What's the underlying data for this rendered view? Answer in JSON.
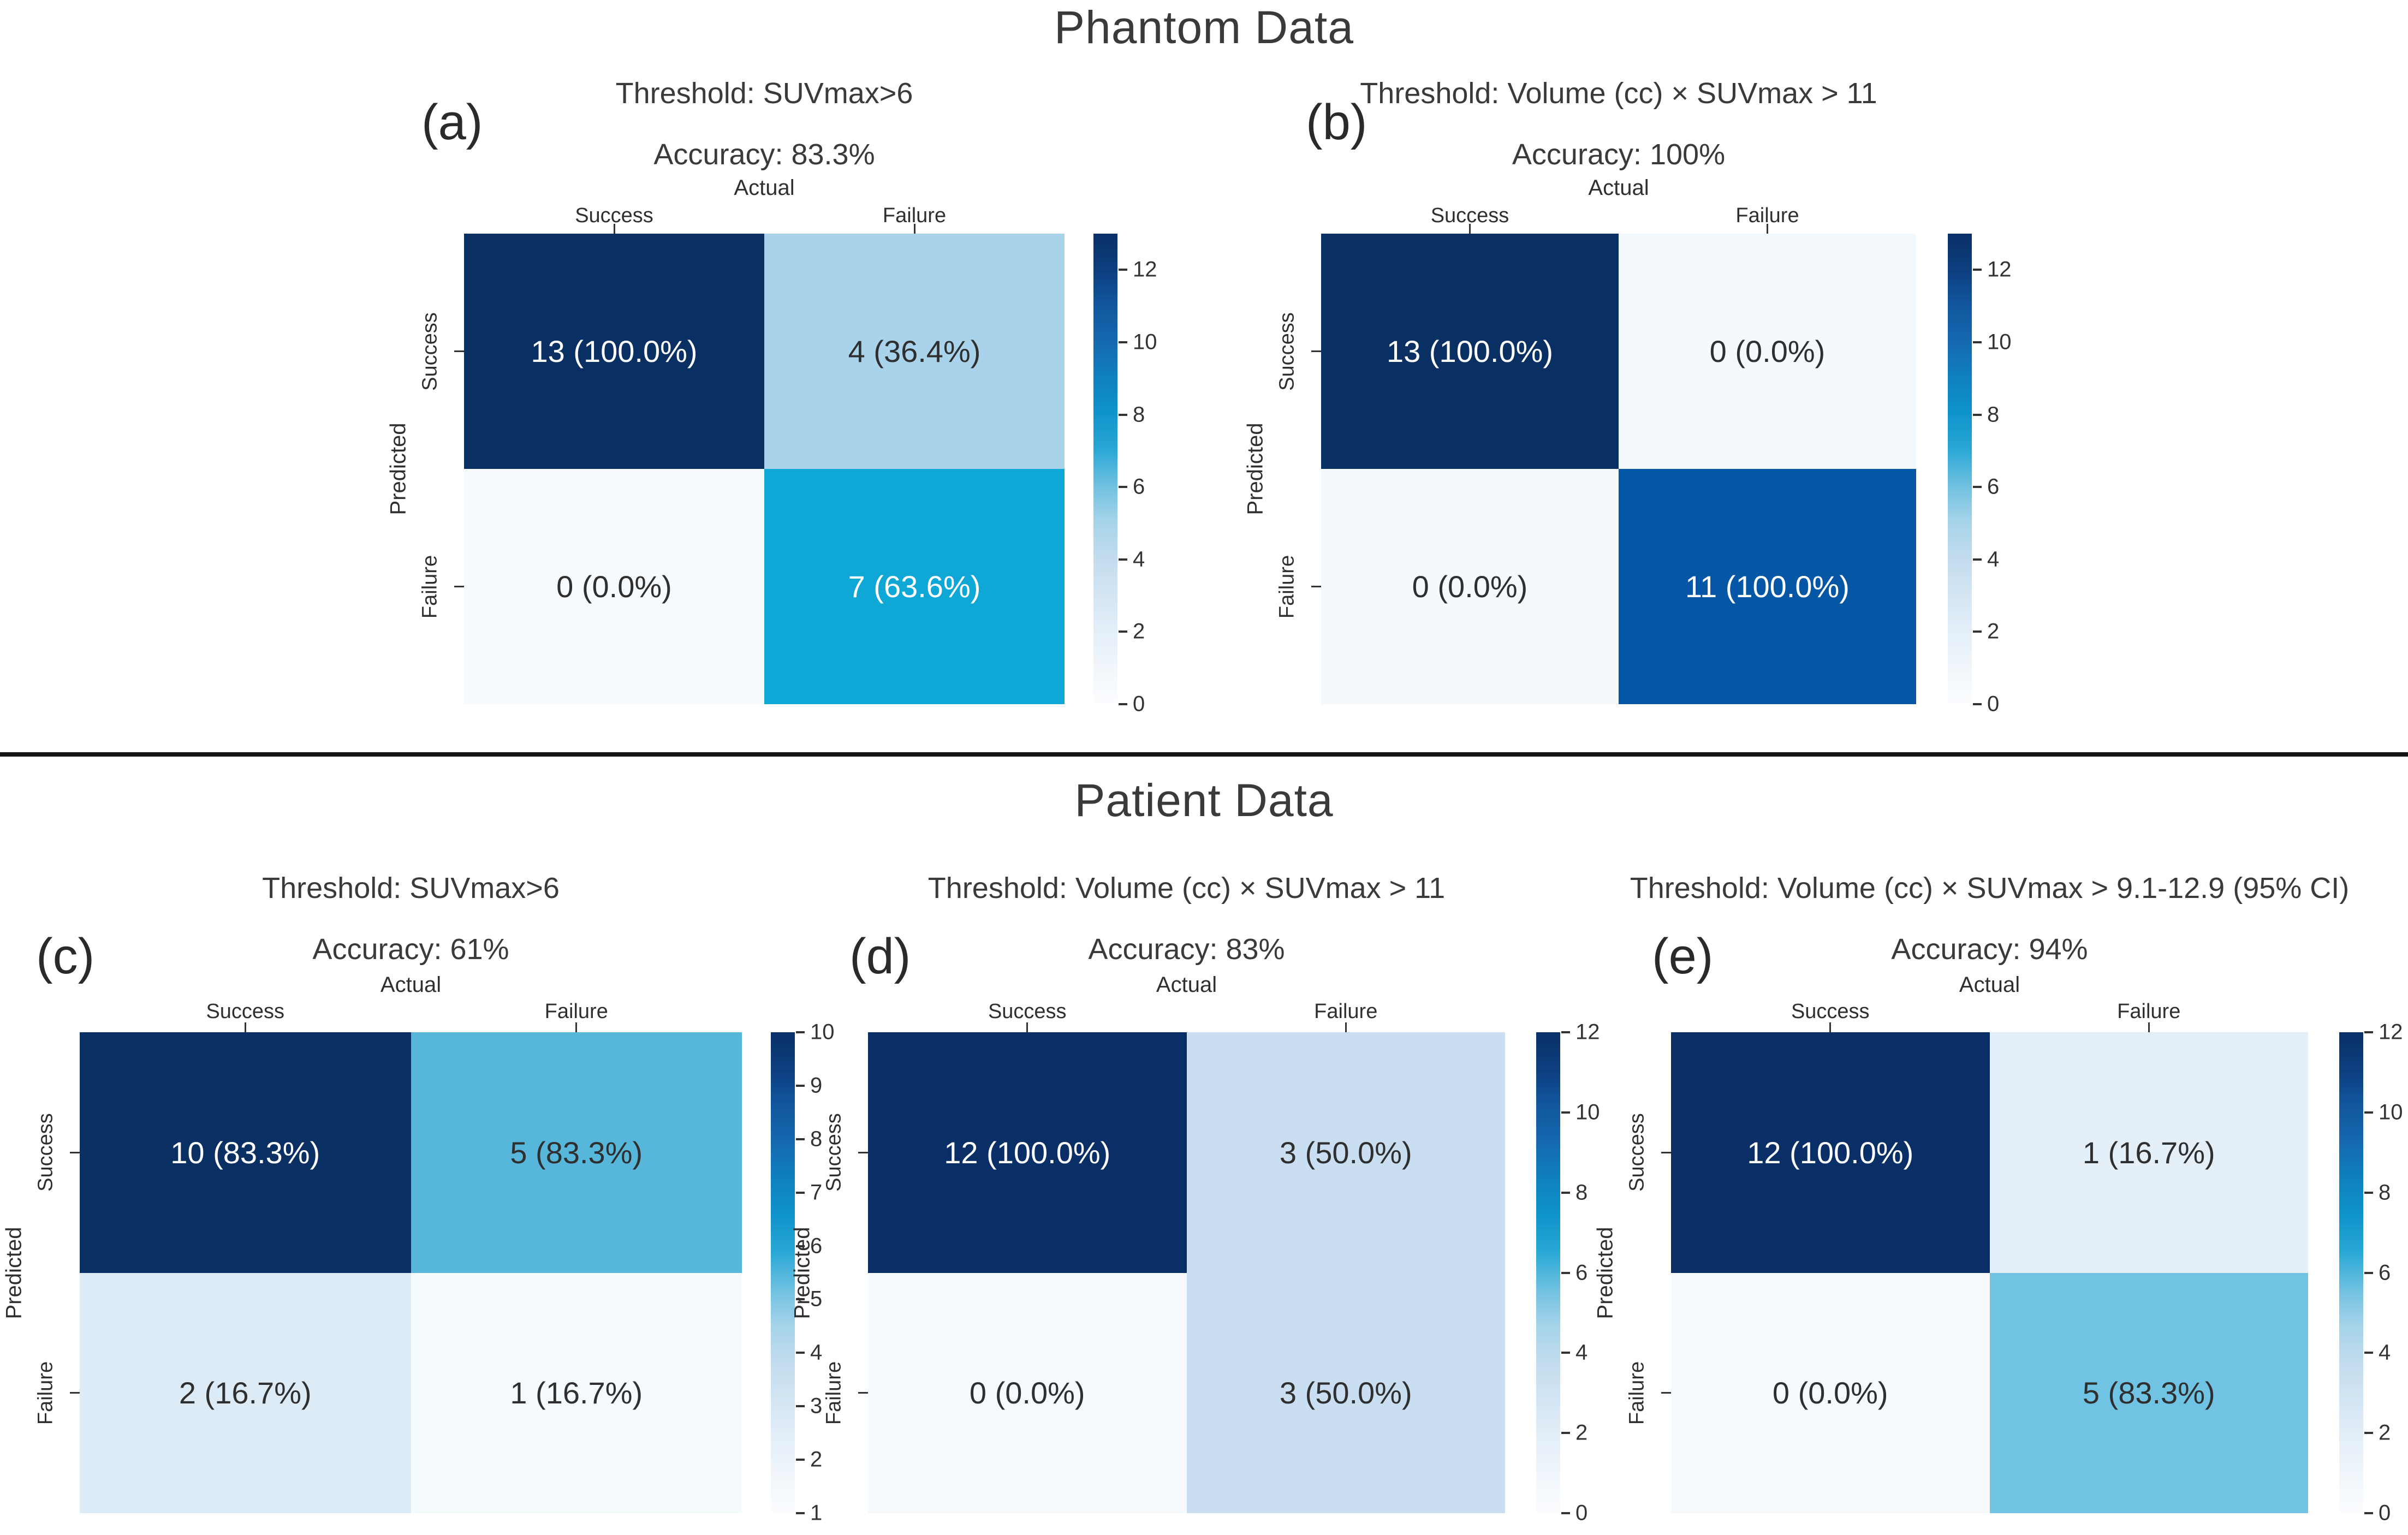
{
  "page": {
    "phantom_title": "Phantom Data",
    "patient_title": "Patient Data"
  },
  "colors": {
    "text_dark": "#2f2f2f",
    "text_light": "#ffffff",
    "dark_navy": "#0a2f63",
    "divider": "#141414",
    "colorbar_gradient": [
      [
        0.0,
        "#fcfdff"
      ],
      [
        0.08,
        "#f0f6fb"
      ],
      [
        0.16,
        "#e3eef8"
      ],
      [
        0.31,
        "#c3dcee"
      ],
      [
        0.39,
        "#a5d3e9"
      ],
      [
        0.46,
        "#72c2e1"
      ],
      [
        0.5,
        "#4fb5da"
      ],
      [
        0.54,
        "#2aa8d6"
      ],
      [
        0.62,
        "#0e93ca"
      ],
      [
        0.7,
        "#0f7fbd"
      ],
      [
        0.77,
        "#1569af"
      ],
      [
        0.85,
        "#11569e"
      ],
      [
        0.92,
        "#0d3f80"
      ],
      [
        1.0,
        "#0a3067"
      ]
    ]
  },
  "chart_data": [
    {
      "id": "a",
      "type": "heatmap",
      "section": "Phantom Data",
      "panel_label": "(a)",
      "title": "Threshold: SUVmax>6",
      "subtitle": "Accuracy: 83.3%",
      "xlabel": "Actual",
      "ylabel": "Predicted",
      "x_categories": [
        "Success",
        "Failure"
      ],
      "y_categories": [
        "Success",
        "Failure"
      ],
      "cells": [
        [
          {
            "label": "13 (100.0%)",
            "count": 13,
            "percent": 100.0,
            "color": "#0a2f63",
            "text": "#ffffff"
          },
          {
            "label": "4 (36.4%)",
            "count": 4,
            "percent": 36.4,
            "color": "#a8d3eb",
            "text": "#2f2f2f"
          }
        ],
        [
          {
            "label": "0 (0.0%)",
            "count": 0,
            "percent": 0.0,
            "color": "#f6fafd",
            "text": "#2f2f2f"
          },
          {
            "label": "7 (63.6%)",
            "count": 7,
            "percent": 63.6,
            "color": "#0fa7d6",
            "text": "#ffffff"
          }
        ]
      ],
      "colorbar": {
        "vmin": 0,
        "vmax": 13,
        "ticks": [
          0,
          2,
          4,
          6,
          8,
          10,
          12
        ]
      }
    },
    {
      "id": "b",
      "type": "heatmap",
      "section": "Phantom Data",
      "panel_label": "(b)",
      "title": "Threshold: Volume (cc) × SUVmax > 11",
      "subtitle": "Accuracy: 100%",
      "xlabel": "Actual",
      "ylabel": "Predicted",
      "x_categories": [
        "Success",
        "Failure"
      ],
      "y_categories": [
        "Success",
        "Failure"
      ],
      "cells": [
        [
          {
            "label": "13 (100.0%)",
            "count": 13,
            "percent": 100.0,
            "color": "#0a2f63",
            "text": "#ffffff"
          },
          {
            "label": "0 (0.0%)",
            "count": 0,
            "percent": 0.0,
            "color": "#f4f9fd",
            "text": "#2f2f2f"
          }
        ],
        [
          {
            "label": "0 (0.0%)",
            "count": 0,
            "percent": 0.0,
            "color": "#f4f9fd",
            "text": "#2f2f2f"
          },
          {
            "label": "11 (100.0%)",
            "count": 11,
            "percent": 100.0,
            "color": "#0557a6",
            "text": "#ffffff"
          }
        ]
      ],
      "colorbar": {
        "vmin": 0,
        "vmax": 13,
        "ticks": [
          0,
          2,
          4,
          6,
          8,
          10,
          12
        ]
      }
    },
    {
      "id": "c",
      "type": "heatmap",
      "section": "Patient Data",
      "panel_label": "(c)",
      "title": "Threshold: SUVmax>6",
      "subtitle": "Accuracy: 61%",
      "xlabel": "Actual",
      "ylabel": "Predicted",
      "x_categories": [
        "Success",
        "Failure"
      ],
      "y_categories": [
        "Success",
        "Failure"
      ],
      "cells": [
        [
          {
            "label": "10 (83.3%)",
            "count": 10,
            "percent": 83.3,
            "color": "#0a2f63",
            "text": "#ffffff"
          },
          {
            "label": "5 (83.3%)",
            "count": 5,
            "percent": 83.3,
            "color": "#57b7db",
            "text": "#2f2f2f"
          }
        ],
        [
          {
            "label": "2 (16.7%)",
            "count": 2,
            "percent": 16.7,
            "color": "#dcebf6",
            "text": "#2f2f2f"
          },
          {
            "label": "1 (16.7%)",
            "count": 1,
            "percent": 16.7,
            "color": "#f5fafd",
            "text": "#2f2f2f"
          }
        ]
      ],
      "colorbar": {
        "vmin": 1,
        "vmax": 10,
        "ticks": [
          1,
          2,
          3,
          4,
          5,
          6,
          7,
          8,
          9,
          10
        ]
      }
    },
    {
      "id": "d",
      "type": "heatmap",
      "section": "Patient Data",
      "panel_label": "(d)",
      "title": "Threshold: Volume (cc) × SUVmax > 11",
      "subtitle": "Accuracy: 83%",
      "xlabel": "Actual",
      "ylabel": "Predicted",
      "x_categories": [
        "Success",
        "Failure"
      ],
      "y_categories": [
        "Success",
        "Failure"
      ],
      "cells": [
        [
          {
            "label": "12 (100.0%)",
            "count": 12,
            "percent": 100.0,
            "color": "#092f66",
            "text": "#ffffff"
          },
          {
            "label": "3 (50.0%)",
            "count": 3,
            "percent": 50.0,
            "color": "#c9def0",
            "text": "#2f2f2f"
          }
        ],
        [
          {
            "label": "0 (0.0%)",
            "count": 0,
            "percent": 0.0,
            "color": "#f6fafd",
            "text": "#2f2f2f"
          },
          {
            "label": "3 (50.0%)",
            "count": 3,
            "percent": 50.0,
            "color": "#c9def0",
            "text": "#2f2f2f"
          }
        ]
      ],
      "colorbar": {
        "vmin": 0,
        "vmax": 12,
        "ticks": [
          0,
          2,
          4,
          6,
          8,
          10,
          12
        ]
      }
    },
    {
      "id": "e",
      "type": "heatmap",
      "section": "Patient Data",
      "panel_label": "(e)",
      "title": "Threshold: Volume (cc) × SUVmax > 9.1-12.9 (95% CI)",
      "subtitle": "Accuracy: 94%",
      "xlabel": "Actual",
      "ylabel": "Predicted",
      "x_categories": [
        "Success",
        "Failure"
      ],
      "y_categories": [
        "Success",
        "Failure"
      ],
      "cells": [
        [
          {
            "label": "12 (100.0%)",
            "count": 12,
            "percent": 100.0,
            "color": "#092f66",
            "text": "#ffffff"
          },
          {
            "label": "1 (16.7%)",
            "count": 1,
            "percent": 16.7,
            "color": "#e4eff8",
            "text": "#2f2f2f"
          }
        ],
        [
          {
            "label": "0 (0.0%)",
            "count": 0,
            "percent": 0.0,
            "color": "#f6fafd",
            "text": "#2f2f2f"
          },
          {
            "label": "5 (83.3%)",
            "count": 5,
            "percent": 83.3,
            "color": "#70c3e2",
            "text": "#2f2f2f"
          }
        ]
      ],
      "colorbar": {
        "vmin": 0,
        "vmax": 12,
        "ticks": [
          0,
          2,
          4,
          6,
          8,
          10,
          12
        ]
      }
    }
  ]
}
